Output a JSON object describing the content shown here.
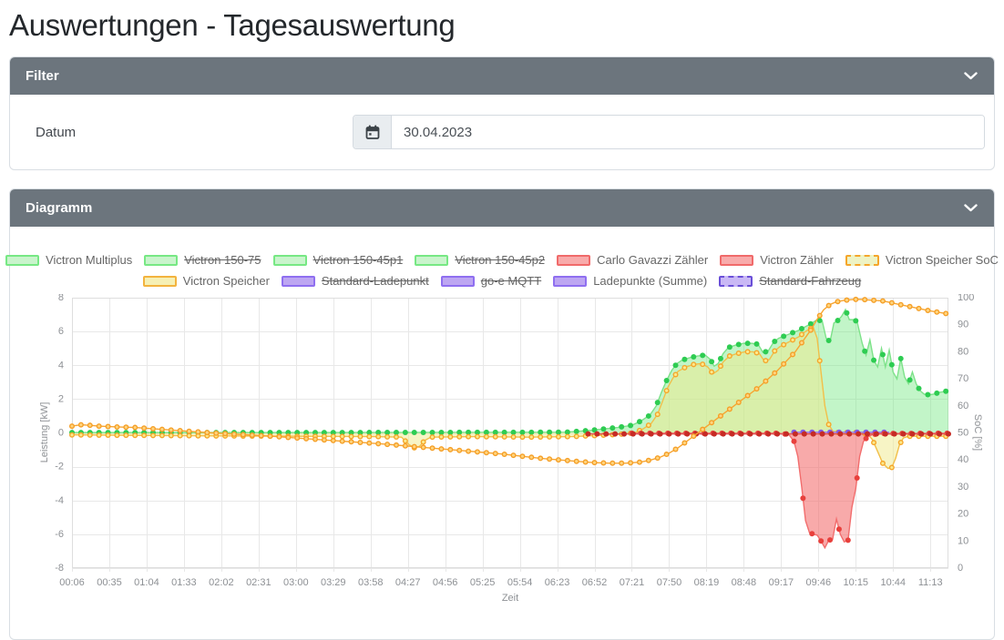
{
  "page": {
    "title": "Auswertungen - Tagesauswertung"
  },
  "filter_panel": {
    "title": "Filter",
    "date_label": "Datum",
    "date_value": "30.04.2023"
  },
  "diagram_panel": {
    "title": "Diagramm"
  },
  "theme": {
    "header_bg": "#6c757d",
    "panel_border": "#d9dee3"
  },
  "chart_data": {
    "type": "line",
    "title": "",
    "xlabel": "Zeit",
    "ylabel_left": "Leistung [kW]",
    "ylabel_right": "SoC [%]",
    "grid": true,
    "legend_position": "top",
    "x_tick_labels": [
      "00:06",
      "00:35",
      "01:04",
      "01:33",
      "02:02",
      "02:31",
      "03:00",
      "03:29",
      "03:58",
      "04:27",
      "04:56",
      "05:25",
      "05:54",
      "06:23",
      "06:52",
      "07:21",
      "07:50",
      "08:19",
      "08:48",
      "09:17",
      "09:46",
      "10:15",
      "10:44",
      "11:13"
    ],
    "x_tick_minutes": [
      6,
      35,
      64,
      93,
      122,
      151,
      180,
      209,
      238,
      267,
      296,
      325,
      354,
      383,
      412,
      441,
      470,
      499,
      528,
      557,
      586,
      615,
      644,
      673
    ],
    "x_domain_minutes": [
      6,
      687
    ],
    "y_left": {
      "min": -8,
      "max": 8,
      "step": 2
    },
    "y_right": {
      "min": 0,
      "max": 100,
      "step": 10
    },
    "dot_step_minutes": 7,
    "legend_rows": [
      [
        {
          "label": "Victron Multiplus",
          "fill": "#c9f4cc",
          "border": "#77e884",
          "hidden": false,
          "dashed": false
        },
        {
          "label": "Victron 150-75",
          "fill": "#c9f4cc",
          "border": "#77e884",
          "hidden": true,
          "dashed": false
        },
        {
          "label": "Victron 150-45p1",
          "fill": "#c9f4cc",
          "border": "#77e884",
          "hidden": true,
          "dashed": false
        },
        {
          "label": "Victron 150-45p2",
          "fill": "#c9f4cc",
          "border": "#77e884",
          "hidden": true,
          "dashed": false
        },
        {
          "label": "Carlo Gavazzi Zähler",
          "fill": "#f8abab",
          "border": "#f06a6a",
          "hidden": false,
          "dashed": false
        },
        {
          "label": "Victron Zähler",
          "fill": "#f8abab",
          "border": "#f06a6a",
          "hidden": false,
          "dashed": false
        },
        {
          "label": "Victron Speicher SoC",
          "fill": "#eef3c4",
          "border": "#f5a62b",
          "hidden": false,
          "dashed": true
        }
      ],
      [
        {
          "label": "Victron Speicher",
          "fill": "#f6f0b4",
          "border": "#f3b33e",
          "hidden": false,
          "dashed": false
        },
        {
          "label": "Standard-Ladepunkt",
          "fill": "#bda6f2",
          "border": "#8f6ff0",
          "hidden": true,
          "dashed": false
        },
        {
          "label": "go-e MQTT",
          "fill": "#bda6f2",
          "border": "#8f6ff0",
          "hidden": true,
          "dashed": false
        },
        {
          "label": "Ladepunkte (Summe)",
          "fill": "#bda6f2",
          "border": "#8f6ff0",
          "hidden": false,
          "dashed": false
        },
        {
          "label": "Standard-Fahrzeug",
          "fill": "#c9b8f5",
          "border": "#6a4fd8",
          "hidden": true,
          "dashed": true
        }
      ]
    ],
    "series": [
      {
        "name": "Victron Multiplus",
        "axis": "left",
        "line": "#7de289",
        "dot": "#2ecc52",
        "fill": "rgba(119,232,132,0.45)",
        "points": [
          [
            6,
            0.02
          ],
          [
            100,
            0.02
          ],
          [
            200,
            0.02
          ],
          [
            300,
            0.03
          ],
          [
            390,
            0.04
          ],
          [
            400,
            0.1
          ],
          [
            410,
            0.16
          ],
          [
            420,
            0.24
          ],
          [
            430,
            0.32
          ],
          [
            441,
            0.45
          ],
          [
            448,
            0.7
          ],
          [
            455,
            1.05
          ],
          [
            460,
            1.6
          ],
          [
            464,
            2.4
          ],
          [
            468,
            3.1
          ],
          [
            472,
            3.7
          ],
          [
            476,
            4.1
          ],
          [
            480,
            4.3
          ],
          [
            486,
            4.45
          ],
          [
            492,
            4.55
          ],
          [
            498,
            4.6
          ],
          [
            502,
            4.35
          ],
          [
            505,
            3.95
          ],
          [
            508,
            4.1
          ],
          [
            512,
            4.7
          ],
          [
            516,
            5.05
          ],
          [
            522,
            5.2
          ],
          [
            528,
            5.3
          ],
          [
            534,
            5.3
          ],
          [
            539,
            5.25
          ],
          [
            543,
            4.75
          ],
          [
            547,
            4.85
          ],
          [
            551,
            5.35
          ],
          [
            555,
            5.6
          ],
          [
            560,
            5.75
          ],
          [
            565,
            5.9
          ],
          [
            570,
            6.05
          ],
          [
            575,
            6.25
          ],
          [
            580,
            6.45
          ],
          [
            585,
            6.7
          ],
          [
            589,
            6.6
          ],
          [
            592,
            5.6
          ],
          [
            595,
            5.4
          ],
          [
            598,
            6.5
          ],
          [
            601,
            6.65
          ],
          [
            604,
            6.9
          ],
          [
            607,
            7.3
          ],
          [
            610,
            6.7
          ],
          [
            613,
            6.7
          ],
          [
            616,
            6.6
          ],
          [
            620,
            5.3
          ],
          [
            623,
            4.6
          ],
          [
            626,
            5.5
          ],
          [
            629,
            4.3
          ],
          [
            632,
            3.9
          ],
          [
            635,
            5.0
          ],
          [
            638,
            3.9
          ],
          [
            641,
            4.9
          ],
          [
            644,
            3.6
          ],
          [
            647,
            3.2
          ],
          [
            650,
            4.4
          ],
          [
            653,
            3.3
          ],
          [
            656,
            2.9
          ],
          [
            659,
            3.6
          ],
          [
            662,
            2.9
          ],
          [
            665,
            2.5
          ],
          [
            668,
            2.3
          ],
          [
            672,
            2.25
          ],
          [
            676,
            2.3
          ],
          [
            680,
            2.4
          ],
          [
            684,
            2.45
          ],
          [
            687,
            2.5
          ]
        ]
      },
      {
        "name": "Victron Speicher",
        "axis": "left",
        "line": "#f2bf49",
        "dot": "#f5a62b",
        "dot_inner": "#fbe98c",
        "fill": "rgba(240,233,140,0.5)",
        "points": [
          [
            6,
            -0.12
          ],
          [
            60,
            -0.15
          ],
          [
            120,
            -0.18
          ],
          [
            180,
            -0.2
          ],
          [
            240,
            -0.22
          ],
          [
            262,
            -0.25
          ],
          [
            268,
            -0.7
          ],
          [
            272,
            -0.88
          ],
          [
            276,
            -0.8
          ],
          [
            280,
            -0.45
          ],
          [
            285,
            -0.25
          ],
          [
            320,
            -0.22
          ],
          [
            360,
            -0.25
          ],
          [
            395,
            -0.22
          ],
          [
            415,
            -0.15
          ],
          [
            432,
            -0.08
          ],
          [
            443,
            0.0
          ],
          [
            450,
            0.25
          ],
          [
            456,
            0.55
          ],
          [
            461,
            1.1
          ],
          [
            465,
            1.9
          ],
          [
            469,
            2.7
          ],
          [
            473,
            3.25
          ],
          [
            477,
            3.65
          ],
          [
            483,
            3.9
          ],
          [
            489,
            4.05
          ],
          [
            495,
            4.1
          ],
          [
            500,
            3.9
          ],
          [
            504,
            3.5
          ],
          [
            508,
            3.7
          ],
          [
            512,
            4.2
          ],
          [
            517,
            4.55
          ],
          [
            523,
            4.7
          ],
          [
            529,
            4.8
          ],
          [
            535,
            4.8
          ],
          [
            540,
            4.7
          ],
          [
            544,
            4.25
          ],
          [
            548,
            4.35
          ],
          [
            552,
            4.85
          ],
          [
            556,
            5.1
          ],
          [
            561,
            5.3
          ],
          [
            566,
            5.5
          ],
          [
            571,
            5.7
          ],
          [
            575,
            5.95
          ],
          [
            579,
            6.15
          ],
          [
            582,
            6.25
          ],
          [
            585,
            5.6
          ],
          [
            588,
            3.6
          ],
          [
            591,
            1.6
          ],
          [
            594,
            0.5
          ],
          [
            597,
            0.12
          ],
          [
            601,
            0.02
          ],
          [
            615,
            0.02
          ],
          [
            624,
            -0.05
          ],
          [
            628,
            -0.4
          ],
          [
            632,
            -1.1
          ],
          [
            636,
            -1.8
          ],
          [
            640,
            -2.1
          ],
          [
            643,
            -2.05
          ],
          [
            646,
            -1.5
          ],
          [
            649,
            -0.7
          ],
          [
            652,
            -0.3
          ],
          [
            656,
            -0.2
          ],
          [
            668,
            -0.2
          ],
          [
            687,
            -0.2
          ]
        ]
      },
      {
        "name": "Ladepunkte (Summe)",
        "axis": "left",
        "line": "#9b82ec",
        "dot": "#7e5ee8",
        "points": [
          [
            567,
            0.04
          ],
          [
            641,
            0.04
          ]
        ]
      },
      {
        "name": "Victron Zähler",
        "axis": "left",
        "line": "#f26d6d",
        "dot": "#e8403c",
        "fill": "rgba(242,100,100,0.55)",
        "points": [
          [
            441,
            -0.02
          ],
          [
            555,
            -0.02
          ],
          [
            563,
            -0.1
          ],
          [
            567,
            -0.5
          ],
          [
            570,
            -1.4
          ],
          [
            573,
            -3.2
          ],
          [
            576,
            -5.2
          ],
          [
            579,
            -5.9
          ],
          [
            582,
            -6.0
          ],
          [
            585,
            -6.05
          ],
          [
            588,
            -6.4
          ],
          [
            591,
            -6.8
          ],
          [
            594,
            -6.35
          ],
          [
            597,
            -6.3
          ],
          [
            600,
            -5.1
          ],
          [
            603,
            -6.0
          ],
          [
            606,
            -6.45
          ],
          [
            609,
            -6.35
          ],
          [
            612,
            -4.4
          ],
          [
            615,
            -3.3
          ],
          [
            618,
            -1.4
          ],
          [
            621,
            -0.5
          ],
          [
            624,
            -0.25
          ],
          [
            628,
            -0.1
          ],
          [
            634,
            -0.04
          ],
          [
            687,
            -0.02
          ]
        ]
      },
      {
        "name": "Carlo Gavazzi Zähler",
        "axis": "left",
        "line": "#e05555",
        "dot": "#c62b25",
        "points": [
          [
            407,
            -0.06
          ],
          [
            687,
            -0.06
          ]
        ]
      },
      {
        "name": "Victron Speicher SoC",
        "axis": "right",
        "line": "#f7a531",
        "dot": "#f59f27",
        "dot_inner": "#ffd47e",
        "points": [
          [
            6,
            52.5
          ],
          [
            13,
            53
          ],
          [
            20,
            52.8
          ],
          [
            27,
            52.5
          ],
          [
            41,
            52.2
          ],
          [
            55,
            52
          ],
          [
            70,
            51.5
          ],
          [
            85,
            51
          ],
          [
            100,
            50.5
          ],
          [
            115,
            50
          ],
          [
            130,
            49.6
          ],
          [
            145,
            49.2
          ],
          [
            160,
            48.8
          ],
          [
            175,
            48.3
          ],
          [
            190,
            47.8
          ],
          [
            205,
            47.3
          ],
          [
            220,
            46.8
          ],
          [
            235,
            46.3
          ],
          [
            250,
            45.8
          ],
          [
            265,
            45.2
          ],
          [
            280,
            44.6
          ],
          [
            295,
            44
          ],
          [
            310,
            43.4
          ],
          [
            325,
            42.8
          ],
          [
            340,
            42.2
          ],
          [
            355,
            41.4
          ],
          [
            370,
            40.6
          ],
          [
            385,
            40
          ],
          [
            400,
            39.4
          ],
          [
            412,
            39
          ],
          [
            424,
            38.8
          ],
          [
            436,
            38.8
          ],
          [
            448,
            39.2
          ],
          [
            456,
            40
          ],
          [
            463,
            41
          ],
          [
            470,
            42.5
          ],
          [
            477,
            44.5
          ],
          [
            484,
            47
          ],
          [
            491,
            49.5
          ],
          [
            498,
            52
          ],
          [
            505,
            54.5
          ],
          [
            512,
            57
          ],
          [
            519,
            59.5
          ],
          [
            526,
            62
          ],
          [
            533,
            64.5
          ],
          [
            540,
            67
          ],
          [
            547,
            70
          ],
          [
            554,
            73
          ],
          [
            561,
            76.5
          ],
          [
            568,
            80
          ],
          [
            574,
            84
          ],
          [
            580,
            88
          ],
          [
            585,
            92
          ],
          [
            590,
            95.5
          ],
          [
            595,
            97.5
          ],
          [
            600,
            98.5
          ],
          [
            606,
            99
          ],
          [
            612,
            99.3
          ],
          [
            618,
            99.4
          ],
          [
            624,
            99.2
          ],
          [
            630,
            99
          ],
          [
            636,
            98.8
          ],
          [
            642,
            98.2
          ],
          [
            648,
            97.6
          ],
          [
            654,
            97
          ],
          [
            660,
            96.4
          ],
          [
            666,
            95.8
          ],
          [
            672,
            95.2
          ],
          [
            678,
            94.7
          ],
          [
            683,
            94.3
          ],
          [
            687,
            94
          ]
        ]
      }
    ]
  }
}
